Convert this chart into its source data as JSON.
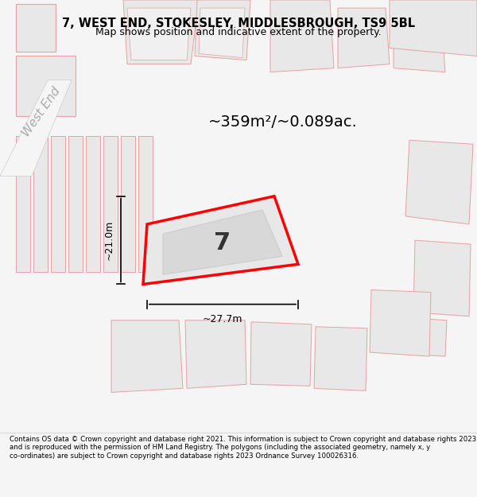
{
  "title_line1": "7, WEST END, STOKESLEY, MIDDLESBROUGH, TS9 5BL",
  "title_line2": "Map shows position and indicative extent of the property.",
  "area_label": "~359m²/~0.089ac.",
  "property_number": "7",
  "dim_vertical": "~21.0m",
  "dim_horizontal": "~27.7m",
  "street_label": "West End",
  "footer_text": "Contains OS data © Crown copyright and database right 2021. This information is subject to Crown copyright and database rights 2023 and is reproduced with the permission of HM Land Registry. The polygons (including the associated geometry, namely x, y co-ordinates) are subject to Crown copyright and database rights 2023 Ordnance Survey 100026316.",
  "bg_color": "#f5f5f5",
  "map_bg_color": "#ffffff",
  "plot_outline_color": "#e8e8e8",
  "property_fill_color": "#e8e8e8",
  "highlight_outline_color": "#ff0000",
  "dim_line_color": "#000000",
  "street_label_color": "#aaaaaa",
  "footer_bg_color": "#ffffff"
}
